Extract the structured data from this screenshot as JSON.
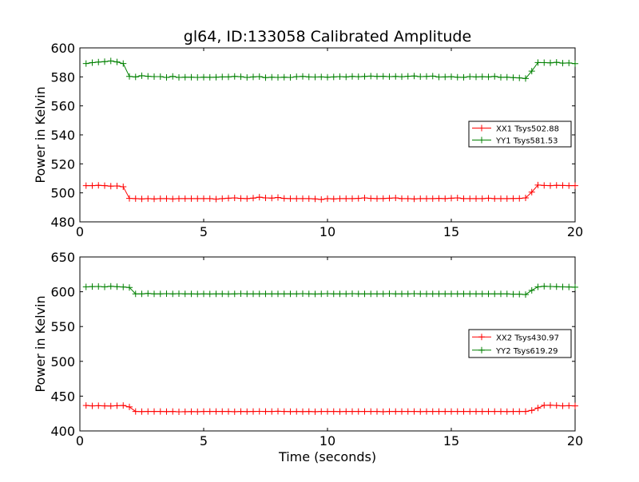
{
  "chart_data": [
    {
      "type": "line",
      "title": "gl64, ID:133058 Calibrated Amplitude",
      "xlabel": "",
      "ylabel": "Power in Kelvin",
      "xlim": [
        0,
        20
      ],
      "ylim": [
        480,
        600
      ],
      "xticks": [
        "0",
        "5",
        "10",
        "15",
        "20"
      ],
      "yticks": [
        "480",
        "500",
        "520",
        "540",
        "560",
        "580",
        "600"
      ],
      "legend_position": "right",
      "grid": false,
      "x": [
        0.25,
        0.5,
        0.75,
        1.0,
        1.25,
        1.5,
        1.75,
        2.0,
        2.25,
        2.5,
        2.75,
        3.0,
        3.25,
        3.5,
        3.75,
        4.0,
        4.25,
        4.5,
        4.75,
        5.0,
        5.25,
        5.5,
        5.75,
        6.0,
        6.25,
        6.5,
        6.75,
        7.0,
        7.25,
        7.5,
        7.75,
        8.0,
        8.25,
        8.5,
        8.75,
        9.0,
        9.25,
        9.5,
        9.75,
        10.0,
        10.25,
        10.5,
        10.75,
        11.0,
        11.25,
        11.5,
        11.75,
        12.0,
        12.25,
        12.5,
        12.75,
        13.0,
        13.25,
        13.5,
        13.75,
        14.0,
        14.25,
        14.5,
        14.75,
        15.0,
        15.25,
        15.5,
        15.75,
        16.0,
        16.25,
        16.5,
        16.75,
        17.0,
        17.25,
        17.5,
        17.75,
        18.0,
        18.25,
        18.5,
        18.75,
        19.0,
        19.25,
        19.5,
        19.75,
        20.0
      ],
      "series": [
        {
          "name": "XX1 Tsys502.88",
          "color": "#ff0000",
          "values": [
            505.0,
            505.0,
            505.2,
            505.0,
            504.6,
            504.8,
            504.2,
            496.2,
            496.0,
            495.8,
            496.0,
            495.8,
            496.0,
            496.0,
            495.8,
            496.0,
            496.0,
            496.0,
            496.0,
            496.0,
            496.0,
            495.7,
            496.0,
            496.3,
            496.5,
            496.2,
            496.0,
            496.4,
            497.0,
            496.5,
            496.4,
            496.8,
            496.2,
            496.0,
            496.0,
            496.0,
            496.0,
            495.8,
            495.5,
            496.0,
            495.8,
            496.0,
            496.0,
            496.0,
            496.2,
            496.5,
            496.2,
            496.0,
            496.1,
            496.3,
            496.5,
            496.0,
            496.0,
            495.8,
            496.0,
            496.0,
            496.0,
            496.2,
            496.0,
            496.3,
            496.5,
            496.0,
            496.0,
            496.0,
            496.0,
            496.3,
            496.0,
            496.0,
            496.0,
            496.1,
            496.2,
            496.5,
            500.5,
            505.4,
            505.1,
            505.0,
            505.2,
            505.1,
            505.0,
            505.0
          ]
        },
        {
          "name": "YY1 Tsys581.53",
          "color": "#008000",
          "values": [
            589.2,
            589.8,
            590.2,
            590.5,
            591.0,
            590.3,
            589.2,
            580.3,
            580.0,
            580.8,
            580.4,
            580.2,
            580.2,
            579.6,
            580.3,
            579.6,
            579.8,
            579.8,
            579.6,
            579.8,
            579.7,
            579.8,
            580.0,
            580.0,
            580.3,
            580.1,
            579.6,
            580.0,
            580.2,
            579.5,
            579.8,
            579.6,
            579.8,
            579.6,
            580.1,
            580.3,
            580.0,
            579.9,
            580.0,
            579.8,
            580.0,
            580.2,
            580.0,
            580.3,
            580.1,
            580.3,
            580.5,
            580.3,
            580.4,
            580.2,
            580.3,
            580.1,
            580.4,
            580.6,
            580.2,
            580.3,
            580.5,
            579.9,
            580.0,
            580.1,
            579.8,
            579.7,
            580.2,
            580.0,
            580.1,
            580.0,
            580.3,
            579.7,
            579.8,
            579.5,
            579.3,
            578.9,
            584.0,
            589.9,
            589.8,
            589.7,
            590.0,
            589.5,
            589.6,
            589.1
          ]
        }
      ]
    },
    {
      "type": "line",
      "title": "",
      "xlabel": "Time (seconds)",
      "ylabel": "Power in Kelvin",
      "xlim": [
        0,
        20
      ],
      "ylim": [
        400,
        650
      ],
      "xticks": [
        "0",
        "5",
        "10",
        "15",
        "20"
      ],
      "yticks": [
        "400",
        "450",
        "500",
        "550",
        "600",
        "650"
      ],
      "legend_position": "right",
      "grid": false,
      "x": [
        0.25,
        0.5,
        0.75,
        1.0,
        1.25,
        1.5,
        1.75,
        2.0,
        2.25,
        2.5,
        2.75,
        3.0,
        3.25,
        3.5,
        3.75,
        4.0,
        4.25,
        4.5,
        4.75,
        5.0,
        5.25,
        5.5,
        5.75,
        6.0,
        6.25,
        6.5,
        6.75,
        7.0,
        7.25,
        7.5,
        7.75,
        8.0,
        8.25,
        8.5,
        8.75,
        9.0,
        9.25,
        9.5,
        9.75,
        10.0,
        10.25,
        10.5,
        10.75,
        11.0,
        11.25,
        11.5,
        11.75,
        12.0,
        12.25,
        12.5,
        12.75,
        13.0,
        13.25,
        13.5,
        13.75,
        14.0,
        14.25,
        14.5,
        14.75,
        15.0,
        15.25,
        15.5,
        15.75,
        16.0,
        16.25,
        16.5,
        16.75,
        17.0,
        17.25,
        17.5,
        17.75,
        18.0,
        18.25,
        18.5,
        18.75,
        19.0,
        19.25,
        19.5,
        19.75,
        20.0
      ],
      "series": [
        {
          "name": "XX2 Tsys430.97",
          "color": "#ff0000",
          "values": [
            436.5,
            436.0,
            436.3,
            436.0,
            435.8,
            436.2,
            436.5,
            434.5,
            428.0,
            427.8,
            428.0,
            428.0,
            427.9,
            427.8,
            428.0,
            427.5,
            427.6,
            427.8,
            427.6,
            428.0,
            427.9,
            428.0,
            428.0,
            428.0,
            427.7,
            428.0,
            427.8,
            428.0,
            428.1,
            428.0,
            428.0,
            428.2,
            428.0,
            427.8,
            428.0,
            427.8,
            428.0,
            427.6,
            428.0,
            428.0,
            428.0,
            427.8,
            427.9,
            428.0,
            428.0,
            428.0,
            428.0,
            428.0,
            427.7,
            428.0,
            428.0,
            428.0,
            428.0,
            428.0,
            427.8,
            428.0,
            428.0,
            428.0,
            428.0,
            428.0,
            428.0,
            428.0,
            428.0,
            428.0,
            428.0,
            427.9,
            428.0,
            428.0,
            427.8,
            428.0,
            427.9,
            428.0,
            429.5,
            433.0,
            436.8,
            437.0,
            436.5,
            436.0,
            436.2,
            436.0
          ]
        },
        {
          "name": "YY2 Tsys619.29",
          "color": "#008000",
          "values": [
            607.0,
            607.4,
            607.6,
            607.0,
            607.8,
            607.3,
            606.8,
            606.2,
            597.0,
            597.0,
            597.5,
            597.0,
            597.0,
            597.2,
            597.0,
            597.2,
            597.0,
            597.0,
            596.8,
            597.0,
            596.8,
            597.0,
            597.0,
            596.8,
            597.0,
            597.2,
            597.0,
            597.0,
            597.0,
            597.0,
            597.0,
            597.0,
            597.0,
            597.0,
            597.0,
            597.2,
            597.0,
            596.8,
            597.0,
            597.2,
            597.0,
            597.0,
            597.0,
            597.2,
            597.0,
            597.0,
            597.0,
            597.0,
            597.0,
            597.2,
            597.0,
            597.0,
            597.0,
            597.2,
            597.0,
            597.0,
            597.0,
            597.0,
            597.0,
            597.0,
            597.0,
            597.0,
            597.0,
            597.0,
            597.0,
            597.0,
            597.0,
            597.0,
            597.0,
            596.5,
            596.6,
            596.0,
            602.0,
            607.0,
            607.8,
            607.5,
            607.3,
            607.0,
            606.9,
            606.5
          ]
        }
      ]
    }
  ]
}
